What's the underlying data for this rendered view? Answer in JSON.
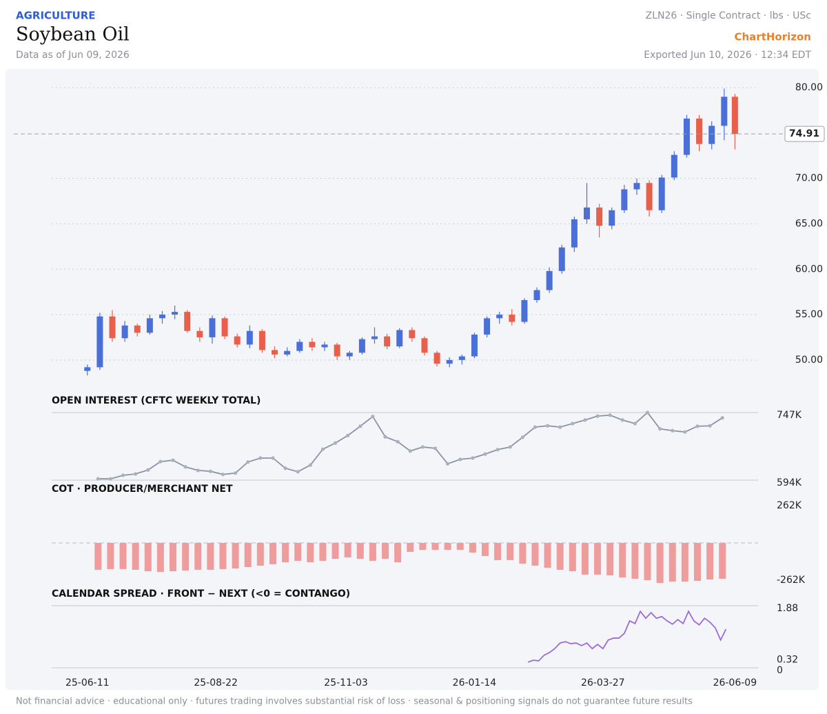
{
  "header": {
    "category": "AGRICULTURE",
    "title": "Soybean Oil",
    "subtitle": "Data as of Jun 09, 2026",
    "contract": "ZLN26 · Single Contract · lbs · USc",
    "brand": "ChartHorizon",
    "exported": "Exported Jun 10, 2026 · 12:34 EDT"
  },
  "x_axis": {
    "xlim": [
      "25-05-22",
      "26-06-22"
    ],
    "xticks": [
      "25-06-11",
      "25-08-22",
      "25-11-03",
      "26-01-14",
      "26-03-27",
      "26-06-09"
    ]
  },
  "chart_data": [
    {
      "type": "candlestick",
      "up_color": "#4a6fd6",
      "down_color": "#e8604c",
      "grid": true,
      "x": [
        "25-06-11",
        "25-06-18",
        "25-06-25",
        "25-07-02",
        "25-07-09",
        "25-07-16",
        "25-07-23",
        "25-07-30",
        "25-08-06",
        "25-08-13",
        "25-08-20",
        "25-08-27",
        "25-09-03",
        "25-09-10",
        "25-09-17",
        "25-09-24",
        "25-10-01",
        "25-10-08",
        "25-10-15",
        "25-10-22",
        "25-10-29",
        "25-11-05",
        "25-11-12",
        "25-11-19",
        "25-11-26",
        "25-12-03",
        "25-12-10",
        "25-12-17",
        "25-12-24",
        "25-12-31",
        "26-01-07",
        "26-01-14",
        "26-01-21",
        "26-01-28",
        "26-02-04",
        "26-02-11",
        "26-02-18",
        "26-02-25",
        "26-03-04",
        "26-03-11",
        "26-03-18",
        "26-03-25",
        "26-04-01",
        "26-04-08",
        "26-04-15",
        "26-04-22",
        "26-04-29",
        "26-05-06",
        "26-05-13",
        "26-05-20",
        "26-05-27",
        "26-06-03",
        "26-06-09"
      ],
      "open": [
        48.8,
        49.2,
        54.8,
        52.4,
        53.8,
        53.0,
        54.6,
        55.0,
        55.3,
        53.2,
        52.5,
        54.6,
        52.6,
        51.7,
        53.2,
        51.1,
        50.6,
        51.0,
        52.0,
        51.4,
        51.7,
        50.4,
        50.8,
        52.3,
        52.6,
        51.5,
        53.3,
        52.4,
        50.8,
        49.6,
        50.0,
        50.4,
        52.8,
        54.6,
        55.0,
        54.2,
        56.6,
        57.7,
        59.8,
        62.4,
        65.5,
        66.8,
        64.8,
        66.5,
        68.8,
        69.5,
        66.5,
        70.1,
        72.6,
        76.6,
        73.8,
        75.8,
        79.0
      ],
      "high": [
        49.5,
        55.2,
        55.5,
        54.3,
        54.0,
        55.0,
        55.4,
        56.0,
        55.5,
        53.6,
        54.9,
        54.8,
        52.9,
        53.8,
        53.4,
        51.5,
        51.4,
        52.3,
        52.4,
        52.0,
        51.9,
        51.0,
        52.5,
        53.6,
        52.9,
        53.5,
        53.6,
        52.6,
        51.0,
        50.3,
        50.6,
        53.0,
        54.8,
        55.3,
        55.6,
        56.8,
        58.0,
        60.2,
        62.7,
        65.8,
        69.5,
        67.2,
        66.8,
        69.3,
        70.0,
        69.8,
        70.4,
        73.0,
        77.0,
        77.0,
        76.3,
        79.9,
        79.3
      ],
      "low": [
        48.3,
        48.9,
        52.0,
        52.0,
        52.6,
        52.8,
        54.0,
        54.5,
        53.0,
        52.0,
        51.8,
        52.3,
        51.4,
        51.3,
        50.8,
        50.2,
        50.4,
        50.8,
        51.0,
        51.0,
        50.0,
        50.0,
        50.6,
        51.8,
        51.2,
        51.3,
        52.0,
        50.5,
        49.3,
        49.2,
        49.5,
        50.2,
        52.5,
        54.0,
        53.8,
        54.0,
        56.3,
        57.4,
        59.5,
        61.9,
        65.0,
        63.5,
        64.4,
        66.2,
        68.2,
        65.8,
        66.2,
        69.8,
        72.3,
        73.0,
        73.2,
        74.2,
        73.2
      ],
      "close": [
        49.2,
        54.8,
        52.4,
        53.8,
        53.0,
        54.6,
        55.0,
        55.3,
        53.2,
        52.5,
        54.6,
        52.6,
        51.7,
        53.2,
        51.1,
        50.6,
        51.0,
        52.0,
        51.4,
        51.7,
        50.4,
        50.8,
        52.3,
        52.6,
        51.5,
        53.3,
        52.4,
        50.8,
        49.6,
        50.0,
        50.4,
        52.8,
        54.6,
        55.0,
        54.2,
        56.6,
        57.7,
        59.8,
        62.4,
        65.5,
        66.8,
        64.8,
        66.5,
        68.8,
        69.5,
        66.5,
        70.1,
        72.6,
        76.6,
        73.8,
        75.8,
        79.0,
        74.91
      ],
      "ylim": [
        47.1,
        81.3
      ],
      "yticks": [
        {
          "value": 50,
          "label": "50.00"
        },
        {
          "value": 55,
          "label": "55.00"
        },
        {
          "value": 60,
          "label": "60.00"
        },
        {
          "value": 65,
          "label": "65.00"
        },
        {
          "value": 70,
          "label": "70.00"
        },
        {
          "value": 80,
          "label": "80.00"
        }
      ]
    },
    {
      "type": "line",
      "title": "OPEN INTEREST (CFTC WEEKLY TOTAL)",
      "color": "#8a93a6",
      "x": [
        "25-06-17",
        "25-06-24",
        "25-07-01",
        "25-07-08",
        "25-07-15",
        "25-07-22",
        "25-07-29",
        "25-08-05",
        "25-08-12",
        "25-08-19",
        "25-08-26",
        "25-09-02",
        "25-09-09",
        "25-09-16",
        "25-09-23",
        "25-09-30",
        "25-10-07",
        "25-10-14",
        "25-10-21",
        "25-10-28",
        "25-11-04",
        "25-11-11",
        "25-11-18",
        "25-11-25",
        "25-12-02",
        "25-12-09",
        "25-12-16",
        "25-12-23",
        "25-12-30",
        "26-01-06",
        "26-01-13",
        "26-01-20",
        "26-01-27",
        "26-02-03",
        "26-02-10",
        "26-02-17",
        "26-02-24",
        "26-03-03",
        "26-03-10",
        "26-03-17",
        "26-03-24",
        "26-03-31",
        "26-04-07",
        "26-04-14",
        "26-04-21",
        "26-04-28",
        "26-05-05",
        "26-05-12",
        "26-05-19",
        "26-05-26",
        "26-06-02"
      ],
      "values": [
        597000,
        597000,
        605000,
        608000,
        617000,
        636000,
        639000,
        624000,
        616000,
        614000,
        607000,
        610000,
        635000,
        644000,
        644000,
        621000,
        613000,
        628000,
        664000,
        678000,
        695000,
        716000,
        738000,
        692000,
        681000,
        660000,
        669000,
        666000,
        631000,
        641000,
        644000,
        653000,
        663000,
        669000,
        691000,
        714000,
        717000,
        714000,
        722000,
        730000,
        739000,
        741000,
        730000,
        722000,
        747000,
        710000,
        706000,
        703000,
        716000,
        717000,
        735000
      ],
      "ylim": [
        594000,
        747000
      ],
      "yticks": [
        {
          "value": 594000,
          "label": "594K"
        },
        {
          "value": 747000,
          "label": "747K"
        }
      ]
    },
    {
      "type": "bar",
      "title": "COT · PRODUCER/MERCHANT NET",
      "color": "#ee9c9c",
      "x": [
        "25-06-17",
        "25-06-24",
        "25-07-01",
        "25-07-08",
        "25-07-15",
        "25-07-22",
        "25-07-29",
        "25-08-05",
        "25-08-12",
        "25-08-19",
        "25-08-26",
        "25-09-02",
        "25-09-09",
        "25-09-16",
        "25-09-23",
        "25-09-30",
        "25-10-07",
        "25-10-14",
        "25-10-21",
        "25-10-28",
        "25-11-04",
        "25-11-11",
        "25-11-18",
        "25-11-25",
        "25-12-02",
        "25-12-09",
        "25-12-16",
        "25-12-23",
        "25-12-30",
        "26-01-06",
        "26-01-13",
        "26-01-20",
        "26-01-27",
        "26-02-03",
        "26-02-10",
        "26-02-17",
        "26-02-24",
        "26-03-03",
        "26-03-10",
        "26-03-17",
        "26-03-24",
        "26-03-31",
        "26-04-07",
        "26-04-14",
        "26-04-21",
        "26-04-28",
        "26-05-05",
        "26-05-12",
        "26-05-19",
        "26-05-26",
        "26-06-02"
      ],
      "values": [
        -189000,
        -184000,
        -184000,
        -189000,
        -199000,
        -204000,
        -199000,
        -194000,
        -189000,
        -189000,
        -184000,
        -180000,
        -170000,
        -160000,
        -150000,
        -136000,
        -126000,
        -136000,
        -126000,
        -112000,
        -102000,
        -112000,
        -126000,
        -112000,
        -136000,
        -63000,
        -49000,
        -49000,
        -49000,
        -49000,
        -68000,
        -92000,
        -121000,
        -121000,
        -146000,
        -160000,
        -175000,
        -189000,
        -199000,
        -223000,
        -223000,
        -228000,
        -243000,
        -252000,
        -262000,
        -282000,
        -272000,
        -272000,
        -267000,
        -257000,
        -252000
      ],
      "ylim": [
        -262000,
        262000
      ],
      "yticks": [
        {
          "value": -262000,
          "label": "-262K"
        },
        {
          "value": 262000,
          "label": "262K"
        }
      ]
    },
    {
      "type": "line",
      "title": "CALENDAR SPREAD · FRONT − NEXT (<0 = CONTANGO)",
      "color": "#9b6bd8",
      "x": [
        "26-02-13",
        "26-02-16",
        "26-02-19",
        "26-02-22",
        "26-02-25",
        "26-02-28",
        "26-03-03",
        "26-03-06",
        "26-03-09",
        "26-03-12",
        "26-03-15",
        "26-03-18",
        "26-03-21",
        "26-03-24",
        "26-03-27",
        "26-03-30",
        "26-04-02",
        "26-04-05",
        "26-04-08",
        "26-04-11",
        "26-04-14",
        "26-04-17",
        "26-04-20",
        "26-04-23",
        "26-04-26",
        "26-04-29",
        "26-05-02",
        "26-05-05",
        "26-05-08",
        "26-05-11",
        "26-05-14",
        "26-05-17",
        "26-05-20",
        "26-05-23",
        "26-05-26",
        "26-05-29",
        "26-06-01",
        "26-06-04"
      ],
      "values": [
        0.17,
        0.23,
        0.21,
        0.38,
        0.46,
        0.58,
        0.75,
        0.79,
        0.73,
        0.75,
        0.67,
        0.75,
        0.58,
        0.71,
        0.58,
        0.84,
        0.9,
        0.9,
        1.04,
        1.42,
        1.34,
        1.71,
        1.5,
        1.67,
        1.5,
        1.55,
        1.42,
        1.32,
        1.46,
        1.34,
        1.71,
        1.42,
        1.3,
        1.5,
        1.38,
        1.21,
        0.84,
        1.17
      ],
      "ylim": [
        0,
        1.88
      ],
      "yticks": [
        0,
        0.32,
        1.88
      ]
    }
  ],
  "footer": "Not financial advice · educational only · futures trading involves substantial risk of loss · seasonal & positioning signals do not guarantee future results"
}
